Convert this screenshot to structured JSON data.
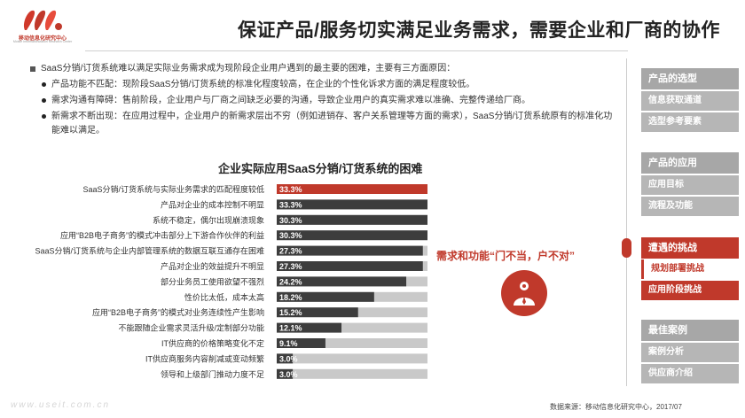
{
  "header": {
    "logo_text": "移动信息化研究中心",
    "logo_subtext": "Mobile Informationization Research Center",
    "title": "保证产品/服务切实满足业务需求，需要企业和厂商的协作"
  },
  "intro": {
    "main": "SaaS分销/订货系统难以满足实际业务需求成为现阶段企业用户遇到的最主要的困难，主要有三方面原因：",
    "bullets": [
      "产品功能不匹配：现阶段SaaS分销/订货系统的标准化程度较高，在企业的个性化诉求方面的满足程度较低。",
      "需求沟通有障碍：售前阶段，企业用户与厂商之间缺乏必要的沟通，导致企业用户的真实需求难以准确、完整传递给厂商。",
      "新需求不断出现：在应用过程中，企业用户的新需求层出不穷（例如进销存、客户关系管理等方面的需求），SaaS分销/订货系统原有的标准化功能难以满足。"
    ]
  },
  "chart_data": {
    "type": "bar",
    "orientation": "horizontal",
    "title": "企业实际应用SaaS分销/订货系统的困难",
    "categories": [
      "SaaS分销/订货系统与实际业务需求的匹配程度较低",
      "产品对企业的成本控制不明显",
      "系统不稳定，偶尔出现崩溃现象",
      "应用“B2B电子商务”的模式冲击部分上下游合作伙伴的利益",
      "SaaS分销/订货系统与企业内部管理系统的数据互联互通存在困难",
      "产品对企业的效益提升不明显",
      "部分业务员工使用欲望不强烈",
      "性价比太低，成本太高",
      "应用“B2B电子商务”的模式对业务连续性产生影响",
      "不能跟随企业需求灵活升级/定制部分功能",
      "IT供应商的价格策略变化不定",
      "IT供应商服务内容削减或变动频繁",
      "领导和上级部门推动力度不足"
    ],
    "values": [
      33.3,
      33.3,
      30.3,
      30.3,
      27.3,
      27.3,
      24.2,
      18.2,
      15.2,
      12.1,
      9.1,
      3.0,
      3.0
    ],
    "value_labels": [
      "33.3%",
      "33.3%",
      "30.3%",
      "30.3%",
      "27.3%",
      "27.3%",
      "24.2%",
      "18.2%",
      "15.2%",
      "12.1%",
      "9.1%",
      "3.0%",
      "3.0%"
    ],
    "xlim": [
      0,
      100
    ],
    "highlight_index": 0,
    "colors": {
      "highlight": "#c0392b",
      "bar": "#3d3d3d",
      "track": "#c9c9c9"
    }
  },
  "callout": {
    "text": "需求和功能“门不当，户不对”",
    "icon": "person-gear-icon"
  },
  "sidebar": {
    "sections": [
      {
        "title": "产品的选型",
        "items": [
          "信息获取通道",
          "选型参考要素"
        ]
      },
      {
        "title": "产品的应用",
        "items": [
          "应用目标",
          "流程及功能"
        ]
      },
      {
        "title": "遭遇的挑战",
        "items": [
          "规划部署挑战",
          "应用阶段挑战"
        ],
        "active": true,
        "active_item": 1
      },
      {
        "title": "最佳案例",
        "items": [
          "案例分析",
          "供应商介绍"
        ]
      }
    ]
  },
  "footer": {
    "source": "数据来源：移动信息化研究中心，2017/07",
    "watermark": "www.useit.com.cn"
  }
}
